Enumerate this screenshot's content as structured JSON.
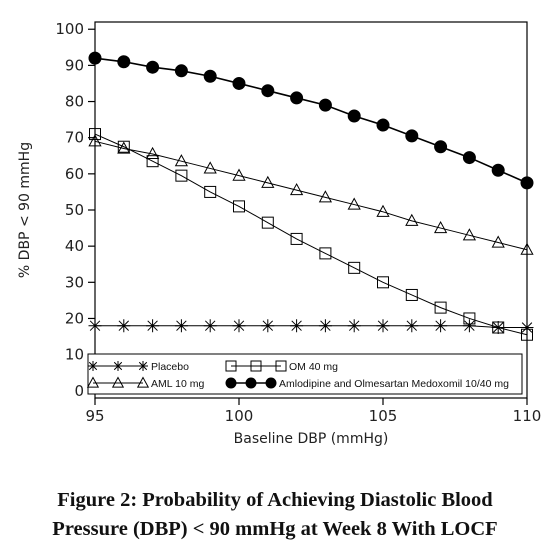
{
  "chart_data": {
    "type": "line",
    "xlabel": "Baseline DBP (mmHg)",
    "ylabel": "% DBP < 90 mmHg",
    "xlim": [
      95,
      110
    ],
    "ylim": [
      -2,
      102
    ],
    "x_ticks": [
      95,
      100,
      105,
      110
    ],
    "y_ticks": [
      0,
      10,
      20,
      30,
      40,
      50,
      60,
      70,
      80,
      90,
      100
    ],
    "grid": false,
    "legend_position": "bottom-left",
    "series": [
      {
        "name": "Placebo",
        "marker": "star",
        "color": "#000000",
        "x": [
          95,
          96,
          97,
          98,
          99,
          100,
          101,
          102,
          103,
          104,
          105,
          106,
          107,
          108,
          109,
          110
        ],
        "y": [
          18,
          18,
          18,
          18,
          18,
          18,
          18,
          18,
          18,
          18,
          18,
          18,
          18,
          18,
          17.5,
          17.5
        ]
      },
      {
        "name": "OM 40 mg",
        "marker": "square",
        "color": "#000000",
        "x": [
          95,
          96,
          97,
          98,
          99,
          100,
          101,
          102,
          103,
          104,
          105,
          106,
          107,
          108,
          109,
          110
        ],
        "y": [
          71,
          67.5,
          63.5,
          59.5,
          55,
          51,
          46.5,
          42,
          38,
          34,
          30,
          26.5,
          23,
          20,
          17.5,
          15.5
        ]
      },
      {
        "name": "AML 10 mg",
        "marker": "triangle",
        "color": "#000000",
        "x": [
          95,
          96,
          97,
          98,
          99,
          100,
          101,
          102,
          103,
          104,
          105,
          106,
          107,
          108,
          109,
          110
        ],
        "y": [
          69,
          67,
          65.5,
          63.5,
          61.5,
          59.5,
          57.5,
          55.5,
          53.5,
          51.5,
          49.5,
          47,
          45,
          43,
          41,
          39
        ]
      },
      {
        "name": "Amlodipine and Olmesartan Medoxomil 10/40 mg",
        "marker": "circle",
        "color": "#000000",
        "x": [
          95,
          96,
          97,
          98,
          99,
          100,
          101,
          102,
          103,
          104,
          105,
          106,
          107,
          108,
          109,
          110
        ],
        "y": [
          92,
          91,
          89.5,
          88.5,
          87,
          85,
          83,
          81,
          79,
          76,
          73.5,
          70.5,
          67.5,
          64.5,
          61,
          57.5
        ]
      }
    ]
  },
  "caption": {
    "line1": "Figure 2: Probability of Achieving Diastolic Blood",
    "line2": "Pressure (DBP) < 90 mmHg at Week 8 With LOCF"
  }
}
